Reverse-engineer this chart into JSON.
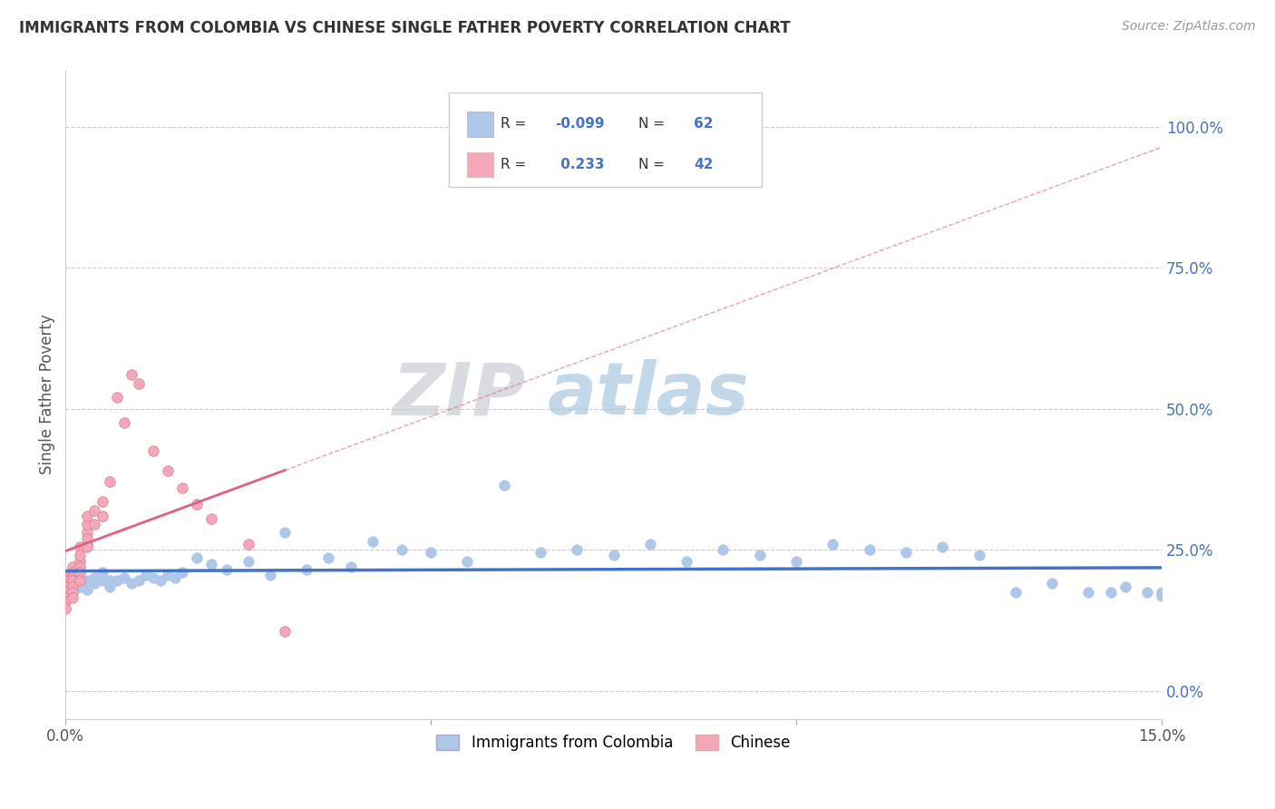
{
  "title": "IMMIGRANTS FROM COLOMBIA VS CHINESE SINGLE FATHER POVERTY CORRELATION CHART",
  "source": "Source: ZipAtlas.com",
  "ylabel": "Single Father Poverty",
  "right_yticks": [
    "100.0%",
    "75.0%",
    "50.0%",
    "25.0%",
    "0.0%"
  ],
  "right_ytick_vals": [
    1.0,
    0.75,
    0.5,
    0.25,
    0.0
  ],
  "xlim": [
    0.0,
    0.15
  ],
  "ylim": [
    -0.05,
    1.1
  ],
  "legend_labels": [
    "Immigrants from Colombia",
    "Chinese"
  ],
  "colombia_color": "#aec6e8",
  "chinese_color": "#f4a7b9",
  "colombia_line_color": "#4472c4",
  "chinese_line_color": "#e06080",
  "watermark_zip": "ZIP",
  "watermark_atlas": "atlas",
  "colombia_x": [
    0.0,
    0.0,
    0.001,
    0.001,
    0.001,
    0.002,
    0.002,
    0.002,
    0.003,
    0.003,
    0.004,
    0.004,
    0.005,
    0.005,
    0.006,
    0.006,
    0.007,
    0.008,
    0.009,
    0.01,
    0.011,
    0.012,
    0.013,
    0.014,
    0.015,
    0.016,
    0.018,
    0.02,
    0.022,
    0.025,
    0.028,
    0.03,
    0.033,
    0.036,
    0.039,
    0.042,
    0.046,
    0.05,
    0.055,
    0.06,
    0.065,
    0.07,
    0.075,
    0.08,
    0.085,
    0.09,
    0.095,
    0.1,
    0.105,
    0.11,
    0.115,
    0.12,
    0.125,
    0.13,
    0.135,
    0.14,
    0.143,
    0.145,
    0.148,
    0.15,
    0.15,
    0.15
  ],
  "colombia_y": [
    0.195,
    0.185,
    0.2,
    0.175,
    0.19,
    0.2,
    0.21,
    0.185,
    0.195,
    0.18,
    0.2,
    0.19,
    0.195,
    0.21,
    0.195,
    0.185,
    0.195,
    0.2,
    0.19,
    0.195,
    0.205,
    0.2,
    0.195,
    0.205,
    0.2,
    0.21,
    0.235,
    0.225,
    0.215,
    0.23,
    0.205,
    0.28,
    0.215,
    0.235,
    0.22,
    0.265,
    0.25,
    0.245,
    0.23,
    0.365,
    0.245,
    0.25,
    0.24,
    0.26,
    0.23,
    0.25,
    0.24,
    0.23,
    0.26,
    0.25,
    0.245,
    0.255,
    0.24,
    0.175,
    0.19,
    0.175,
    0.175,
    0.185,
    0.175,
    0.175,
    0.17,
    0.168
  ],
  "chinese_x": [
    0.0,
    0.0,
    0.0,
    0.0,
    0.0,
    0.0,
    0.0,
    0.001,
    0.001,
    0.001,
    0.001,
    0.001,
    0.001,
    0.001,
    0.002,
    0.002,
    0.002,
    0.002,
    0.002,
    0.002,
    0.003,
    0.003,
    0.003,
    0.003,
    0.003,
    0.003,
    0.004,
    0.004,
    0.005,
    0.005,
    0.006,
    0.007,
    0.008,
    0.009,
    0.01,
    0.012,
    0.014,
    0.016,
    0.018,
    0.02,
    0.025,
    0.03
  ],
  "chinese_y": [
    0.2,
    0.195,
    0.185,
    0.175,
    0.165,
    0.158,
    0.145,
    0.22,
    0.21,
    0.2,
    0.195,
    0.185,
    0.175,
    0.165,
    0.23,
    0.255,
    0.24,
    0.22,
    0.21,
    0.195,
    0.26,
    0.28,
    0.295,
    0.31,
    0.27,
    0.255,
    0.32,
    0.295,
    0.335,
    0.31,
    0.37,
    0.52,
    0.475,
    0.56,
    0.545,
    0.425,
    0.39,
    0.36,
    0.33,
    0.305,
    0.26,
    0.105
  ]
}
